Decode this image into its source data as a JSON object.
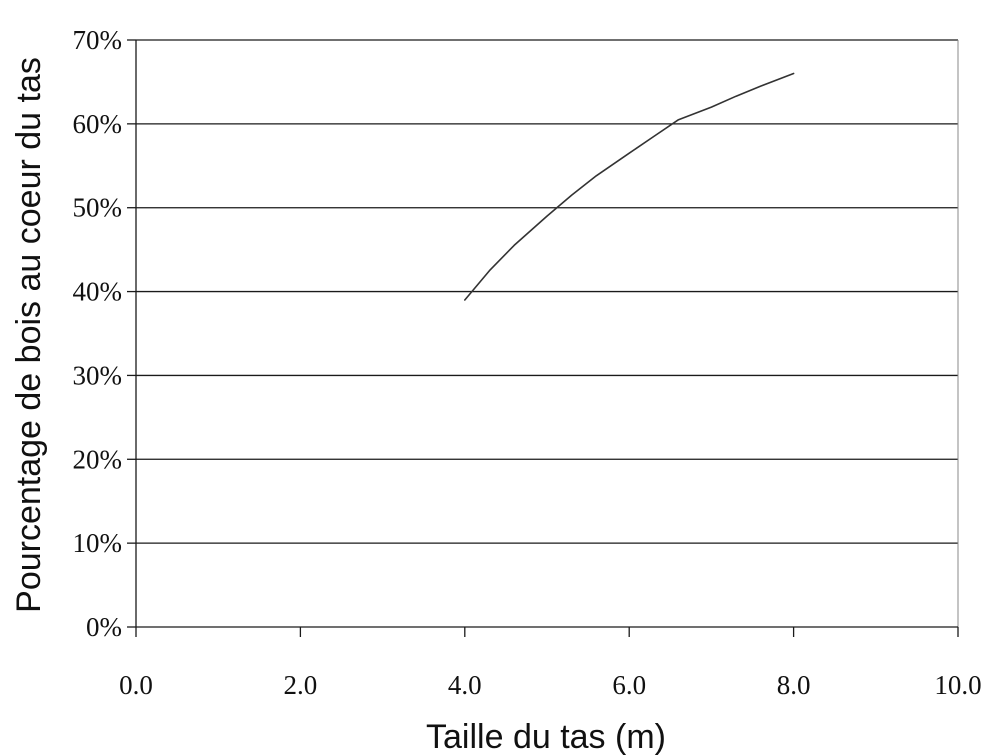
{
  "chart_data": {
    "type": "line",
    "title": "",
    "xlabel": "Taille du tas (m)",
    "ylabel": "Pourcentage de bois au coeur du tas",
    "xlim": [
      0,
      10
    ],
    "ylim": [
      0,
      70
    ],
    "x_ticks": [
      0,
      2,
      4,
      6,
      8,
      10
    ],
    "x_tick_labels": [
      "0.0",
      "2.0",
      "4.0",
      "6.0",
      "8.0",
      "10.0"
    ],
    "y_ticks": [
      0,
      10,
      20,
      30,
      40,
      50,
      60,
      70
    ],
    "y_tick_labels": [
      "0%",
      "10%",
      "20%",
      "30%",
      "40%",
      "50%",
      "60%",
      "70%"
    ],
    "grid": "horizontal",
    "legend": "none",
    "series": [
      {
        "color": "#333333",
        "x": [
          4.0,
          4.3,
          4.6,
          5.0,
          5.3,
          5.6,
          6.0,
          6.3,
          6.6,
          7.0,
          7.3,
          7.6,
          8.0
        ],
        "y": [
          39,
          42.5,
          45.5,
          49,
          51.5,
          53.8,
          56.5,
          58.5,
          60.5,
          62,
          63.3,
          64.5,
          66
        ]
      }
    ]
  }
}
